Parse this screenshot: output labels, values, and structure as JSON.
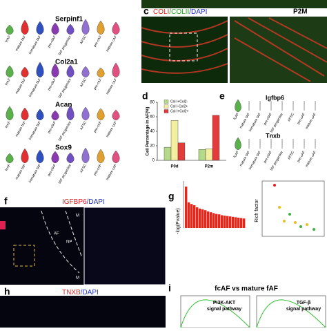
{
  "violin_panel": {
    "cell_types": [
      "fcAF",
      "mature fAF",
      "immature fAF",
      "pre-cfAF",
      "fAF progenitor",
      "AFSC",
      "pre-cAF",
      "mature cAF"
    ],
    "genes": [
      "Serpinf1",
      "Col2a1",
      "Acan",
      "Sox9"
    ]
  },
  "panel_c": {
    "letter": "c",
    "stain_a": "COLI",
    "stain_b": "/COLII",
    "stain_c": "/DAPI",
    "age": "P2M"
  },
  "chart_data": {
    "type": "bar",
    "panel_label": "d",
    "y_label": "Cell Percentage in AF(%)",
    "categories": [
      "P0d",
      "P2m"
    ],
    "series": [
      {
        "name": "Col I+Col2-",
        "color": "#b5d98a",
        "values": [
          18,
          15
        ]
      },
      {
        "name": "Col I-Col2+",
        "color": "#f3efa0",
        "values": [
          55,
          16
        ]
      },
      {
        "name": "Col I+Col2+",
        "color": "#e23b3b",
        "values": [
          24,
          62
        ]
      }
    ],
    "ylim": [
      0,
      80
    ],
    "yticks": [
      0,
      20,
      40,
      60,
      80
    ]
  },
  "panel_e": {
    "letter": "e",
    "genes": [
      "Igfbp6",
      "Tnxb"
    ]
  },
  "panel_f": {
    "letter": "f",
    "stain": "IGFBP6",
    "dapi": "/DAPI",
    "regions": [
      "AF",
      "NP",
      "M",
      "M"
    ]
  },
  "panel_g": {
    "letter": "g",
    "y_label": "-log(Pvalue)",
    "y_label_right": "Rich factor",
    "values": [
      100,
      62,
      58,
      55,
      50,
      47,
      45,
      43,
      40,
      38,
      36,
      34,
      33,
      31,
      30,
      29,
      28,
      27,
      26,
      25,
      24,
      23
    ]
  },
  "panel_h": {
    "letter": "h",
    "stain": "TNXB",
    "dapi": "/DAPI"
  },
  "panel_i": {
    "letter": "i",
    "title": "fcAF vs mature fAF",
    "pathways": [
      {
        "name": "PI3K-AKT",
        "sub": "signal pathway"
      },
      {
        "name": "TGF-β",
        "sub": "signal pathway"
      }
    ]
  }
}
